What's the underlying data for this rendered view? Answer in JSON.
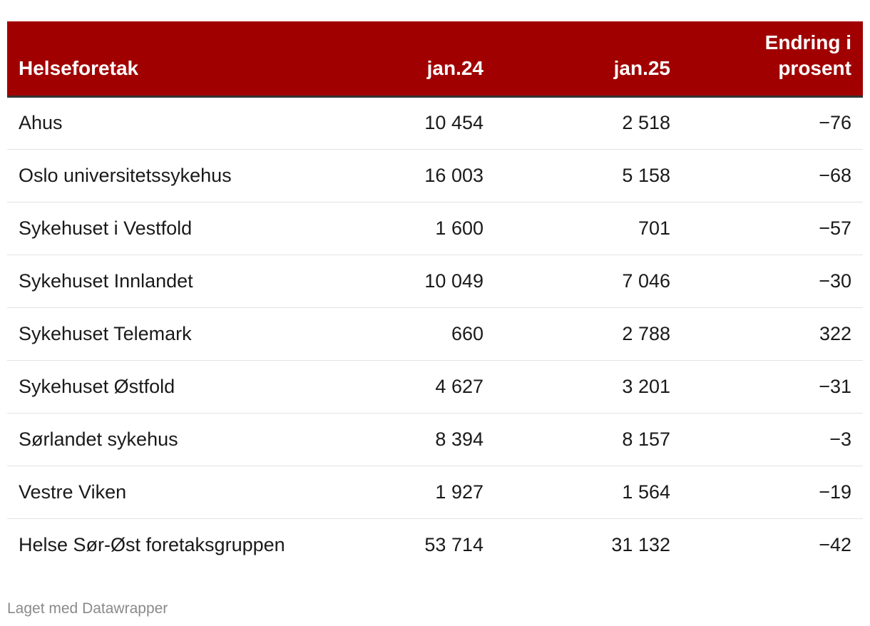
{
  "chart_data": {
    "type": "table",
    "columns": [
      "Helseforetak",
      "jan.24",
      "jan.25",
      "Endring i prosent"
    ],
    "rows": [
      {
        "name": "Ahus",
        "jan24": "10 454",
        "jan25": "2 518",
        "change": "−76"
      },
      {
        "name": "Oslo universitetssykehus",
        "jan24": "16 003",
        "jan25": "5 158",
        "change": "−68"
      },
      {
        "name": "Sykehuset i Vestfold",
        "jan24": "1 600",
        "jan25": "701",
        "change": "−57"
      },
      {
        "name": "Sykehuset Innlandet",
        "jan24": "10 049",
        "jan25": "7 046",
        "change": "−30"
      },
      {
        "name": "Sykehuset Telemark",
        "jan24": "660",
        "jan25": "2 788",
        "change": "322"
      },
      {
        "name": "Sykehuset Østfold",
        "jan24": "4 627",
        "jan25": "3 201",
        "change": "−31"
      },
      {
        "name": "Sørlandet sykehus",
        "jan24": "8 394",
        "jan25": "8 157",
        "change": "−3"
      },
      {
        "name": "Vestre Viken",
        "jan24": "1 927",
        "jan25": "1 564",
        "change": "−19"
      },
      {
        "name": "Helse Sør-Øst foretaksgruppen",
        "jan24": "53 714",
        "jan25": "31 132",
        "change": "−42"
      }
    ]
  },
  "footer": {
    "credit": "Laget med Datawrapper"
  },
  "colors": {
    "header_bg": "#a00000",
    "header_text": "#ffffff",
    "divider": "#e3e3e3"
  }
}
